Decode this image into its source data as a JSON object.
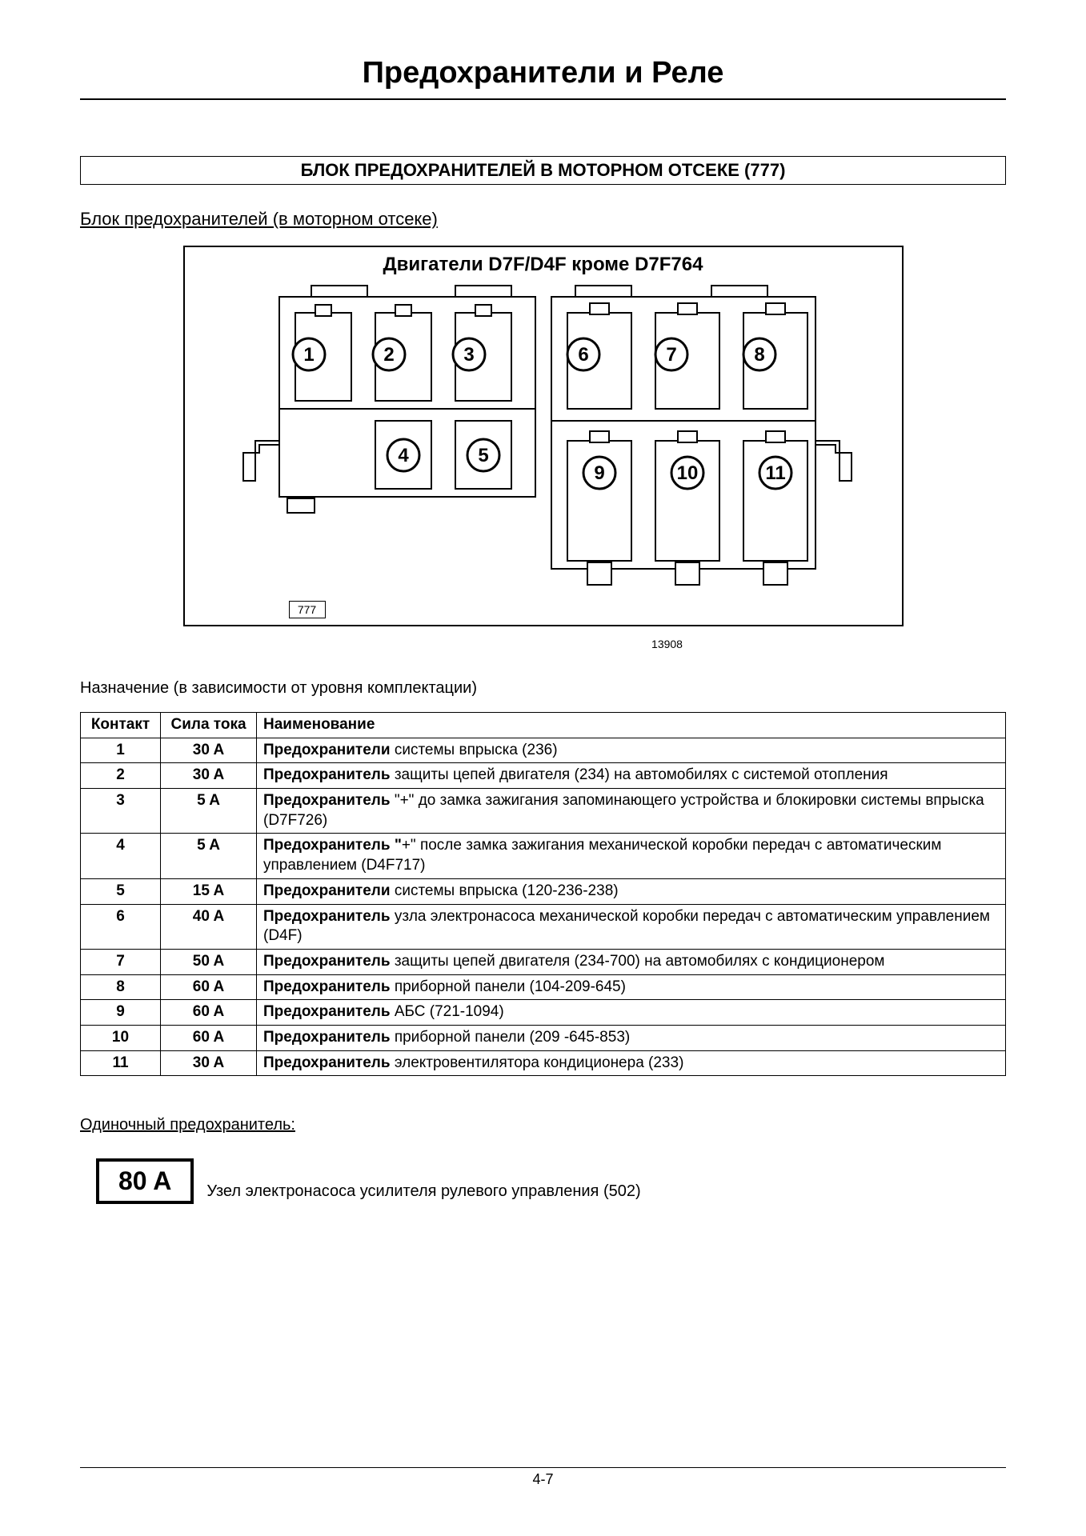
{
  "page": {
    "title": "Предохранители и Реле",
    "section_title": "БЛОК ПРЕДОХРАНИТЕЛЕЙ В МОТОРНОМ ОТСЕКЕ (777)",
    "sub_title": "Блок предохранителей (в моторном отсеке)",
    "diagram_title": "Двигатели D7F/D4F кроме D7F764",
    "diagram_code": "13908",
    "box_label": "777",
    "assignment_label": "Назначение (в зависимости от уровня комплектации)",
    "footer": "4-7"
  },
  "diagram": {
    "circles": [
      "1",
      "2",
      "3",
      "4",
      "5",
      "6",
      "7",
      "8",
      "9",
      "10",
      "11"
    ],
    "stroke": "#000000",
    "fill": "#ffffff",
    "stroke_width": 2
  },
  "table": {
    "headers": {
      "c1": "Контакт",
      "c2": "Сила тока",
      "c3": "Наименование"
    },
    "rows": [
      {
        "n": "1",
        "a": "30 A",
        "b": "Предохранители",
        "t": " системы впрыска (236)"
      },
      {
        "n": "2",
        "a": "30 A",
        "b": "Предохранитель",
        "t": " защиты цепей двигателя (234) на автомобилях с системой отопления"
      },
      {
        "n": "3",
        "a": "5 A",
        "b": "Предохранитель",
        "t": " \"+\" до замка зажигания запоминающего устройства и блокировки системы впрыска (D7F726)"
      },
      {
        "n": "4",
        "a": "5 A",
        "b": "Предохранитель \"",
        "t": "+\" после замка зажигания механической коробки передач с автоматическим управлением (D4F717)"
      },
      {
        "n": "5",
        "a": "15 A",
        "b": "Предохранители",
        "t": " системы впрыска (120-236-238)"
      },
      {
        "n": "6",
        "a": "40 A",
        "b": "Предохранитель",
        "t": " узла электронасоса механической коробки передач с автоматическим управлением (D4F)"
      },
      {
        "n": "7",
        "a": "50 A",
        "b": "Предохранитель",
        "t": " защиты цепей двигателя (234-700) на автомобилях с кондиционером"
      },
      {
        "n": "8",
        "a": "60 A",
        "b": "Предохранитель",
        "t": "  приборной панели (104-209-645)"
      },
      {
        "n": "9",
        "a": "60 A",
        "b": "Предохранитель",
        "t": " АБС (721-1094)"
      },
      {
        "n": "10",
        "a": "60 A",
        "b": "Предохранитель",
        "t": "  приборной панели (209 -645-853)"
      },
      {
        "n": "11",
        "a": "30 A",
        "b": "Предохранитель",
        "t": " электровентилятора кондиционера (233)"
      }
    ]
  },
  "single_fuse": {
    "label": "Одиночный предохранитель:",
    "value": "80 A",
    "text": "Узел электронасоса усилителя рулевого управления (502)"
  }
}
